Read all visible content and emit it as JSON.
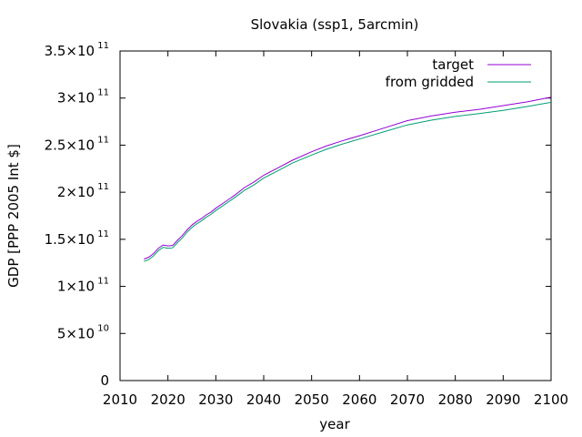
{
  "chart_data": {
    "type": "line",
    "title": "Slovakia (ssp1, 5arcmin)",
    "xlabel": "year",
    "ylabel": "GDP [PPP 2005 Int $]",
    "xlim": [
      2010,
      2100
    ],
    "ylim": [
      0,
      350000000000
    ],
    "xticks": [
      2010,
      2020,
      2030,
      2040,
      2050,
      2060,
      2070,
      2080,
      2090,
      2100
    ],
    "yticks": [
      {
        "value": 0,
        "mantissa": "0",
        "exponent": ""
      },
      {
        "value": 50000000000,
        "mantissa": "5×10",
        "exponent": "10"
      },
      {
        "value": 100000000000,
        "mantissa": "1×10",
        "exponent": "11"
      },
      {
        "value": 150000000000,
        "mantissa": "1.5×10",
        "exponent": "11"
      },
      {
        "value": 200000000000,
        "mantissa": "2×10",
        "exponent": "11"
      },
      {
        "value": 250000000000,
        "mantissa": "2.5×10",
        "exponent": "11"
      },
      {
        "value": 300000000000,
        "mantissa": "3×10",
        "exponent": "11"
      },
      {
        "value": 350000000000,
        "mantissa": "3.5×10",
        "exponent": "11"
      }
    ],
    "legend_position": "top-right",
    "grid": false,
    "x": [
      2015,
      2016,
      2017,
      2018,
      2019,
      2020,
      2021,
      2022,
      2023,
      2024,
      2025,
      2026,
      2027,
      2028,
      2029,
      2030,
      2032,
      2034,
      2036,
      2038,
      2040,
      2043,
      2046,
      2050,
      2053,
      2056,
      2060,
      2065,
      2070,
      2075,
      2080,
      2085,
      2090,
      2095,
      2100
    ],
    "series": [
      {
        "name": "target",
        "color": "#9400d3",
        "values": [
          129000000000,
          131000000000,
          135000000000,
          140500000000,
          144000000000,
          143000000000,
          143500000000,
          149000000000,
          154000000000,
          160000000000,
          165000000000,
          169000000000,
          172000000000,
          176000000000,
          179000000000,
          183000000000,
          190000000000,
          197000000000,
          205000000000,
          211000000000,
          218000000000,
          226000000000,
          234000000000,
          243000000000,
          249000000000,
          254000000000,
          260000000000,
          268000000000,
          276000000000,
          281000000000,
          285000000000,
          288000000000,
          292000000000,
          296000000000,
          301000000000
        ]
      },
      {
        "name": "from gridded",
        "color": "#009e73",
        "values": [
          126500000000,
          128500000000,
          132500000000,
          138000000000,
          141500000000,
          140500000000,
          141000000000,
          146500000000,
          151500000000,
          157500000000,
          162500000000,
          166500000000,
          169500000000,
          173500000000,
          176500000000,
          180500000000,
          187500000000,
          194500000000,
          202000000000,
          208000000000,
          215000000000,
          223000000000,
          231000000000,
          239500000000,
          245500000000,
          250500000000,
          256500000000,
          264000000000,
          271500000000,
          276500000000,
          280500000000,
          283500000000,
          287000000000,
          291000000000,
          295500000000
        ]
      }
    ]
  }
}
